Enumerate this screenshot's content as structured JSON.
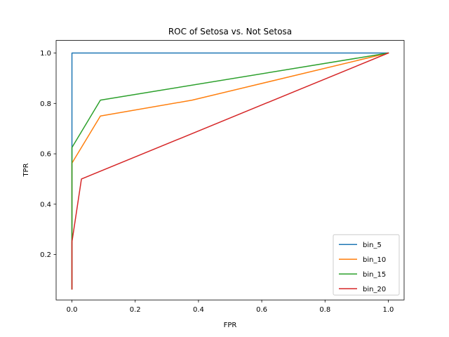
{
  "chart_data": {
    "type": "line",
    "title": "ROC of Setosa vs. Not Setosa",
    "xlabel": "FPR",
    "ylabel": "TPR",
    "xlim": [
      -0.05,
      1.05
    ],
    "ylim": [
      0.02,
      1.05
    ],
    "xticks": [
      "0.0",
      "0.2",
      "0.4",
      "0.6",
      "0.8",
      "1.0"
    ],
    "yticks": [
      "0.2",
      "0.4",
      "0.6",
      "0.8",
      "1.0"
    ],
    "grid": false,
    "legend_position": "lower right",
    "series": [
      {
        "name": "bin_5",
        "color": "#1f77b4",
        "x": [
          0.0,
          0.0,
          1.0
        ],
        "y": [
          0.063,
          1.0,
          1.0
        ]
      },
      {
        "name": "bin_10",
        "color": "#ff7f0e",
        "x": [
          0.0,
          0.0,
          0.0,
          0.09,
          0.38,
          1.0
        ],
        "y": [
          0.063,
          0.25,
          0.563,
          0.75,
          0.813,
          1.0
        ]
      },
      {
        "name": "bin_15",
        "color": "#2ca02c",
        "x": [
          0.0,
          0.0,
          0.0,
          0.09,
          1.0
        ],
        "y": [
          0.063,
          0.25,
          0.625,
          0.813,
          1.0
        ]
      },
      {
        "name": "bin_20",
        "color": "#d62728",
        "x": [
          0.0,
          0.0,
          0.03,
          1.0
        ],
        "y": [
          0.063,
          0.25,
          0.5,
          1.0
        ]
      }
    ]
  }
}
